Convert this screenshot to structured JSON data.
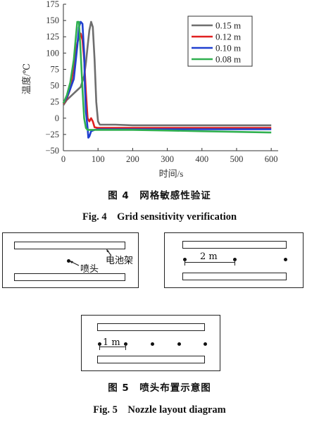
{
  "chart_data": {
    "type": "line",
    "xlabel": "时间/s",
    "ylabel": "温度/℃",
    "xlim": [
      0,
      620
    ],
    "ylim": [
      -50,
      175
    ],
    "xticks": [
      0,
      100,
      200,
      300,
      400,
      500,
      600
    ],
    "yticks": [
      175,
      150,
      125,
      100,
      75,
      50,
      25,
      0,
      -25,
      -50
    ],
    "legend_position": "top-right",
    "series": [
      {
        "name": "0.15 m",
        "color": "#6e6e6e",
        "x": [
          0,
          10,
          20,
          30,
          40,
          50,
          60,
          65,
          70,
          75,
          80,
          85,
          90,
          95,
          100,
          105,
          110,
          120,
          150,
          200,
          300,
          400,
          500,
          600
        ],
        "y": [
          20,
          28,
          33,
          38,
          43,
          48,
          65,
          85,
          110,
          135,
          148,
          140,
          90,
          25,
          -5,
          -10,
          -10,
          -10,
          -10,
          -11,
          -11,
          -11,
          -11,
          -11
        ]
      },
      {
        "name": "0.12 m",
        "color": "#e02020",
        "x": [
          0,
          10,
          20,
          30,
          35,
          40,
          45,
          50,
          55,
          60,
          65,
          70,
          75,
          80,
          85,
          90,
          100,
          150,
          200,
          300,
          400,
          500,
          600
        ],
        "y": [
          22,
          30,
          45,
          80,
          100,
          115,
          125,
          130,
          120,
          90,
          40,
          0,
          -5,
          0,
          -5,
          -14,
          -15,
          -15,
          -15,
          -15,
          -15,
          -15,
          -15
        ]
      },
      {
        "name": "0.10 m",
        "color": "#2040d0",
        "x": [
          0,
          10,
          20,
          30,
          40,
          45,
          50,
          55,
          60,
          62,
          65,
          70,
          72,
          75,
          80,
          90,
          100,
          150,
          200,
          300,
          400,
          500,
          600
        ],
        "y": [
          23,
          32,
          45,
          60,
          110,
          140,
          148,
          145,
          100,
          50,
          10,
          -15,
          -30,
          -28,
          -20,
          -18,
          -17,
          -17,
          -17,
          -17,
          -17,
          -17,
          -17
        ]
      },
      {
        "name": "0.08 m",
        "color": "#30b050",
        "x": [
          0,
          10,
          20,
          30,
          40,
          45,
          50,
          55,
          60,
          65,
          70,
          80,
          100,
          150,
          200,
          300,
          400,
          500,
          600
        ],
        "y": [
          23,
          35,
          55,
          90,
          148,
          148,
          100,
          45,
          0,
          -15,
          -18,
          -18,
          -18,
          -18,
          -18,
          -19,
          -20,
          -21,
          -22
        ]
      }
    ]
  },
  "captions": {
    "fig4_cn": "图 4　网格敏感性验证",
    "fig4_en": "Fig. 4　Grid sensitivity verification",
    "fig5_cn": "图 5　喷头布置示意图",
    "fig5_en": "Fig. 5　Nozzle layout diagram"
  },
  "diagram1": {
    "label_rack": "电池架",
    "label_nozzle": "喷头"
  },
  "diagram2": {
    "dim_label": "2 m"
  },
  "diagram3": {
    "dim_label": "1 m"
  }
}
